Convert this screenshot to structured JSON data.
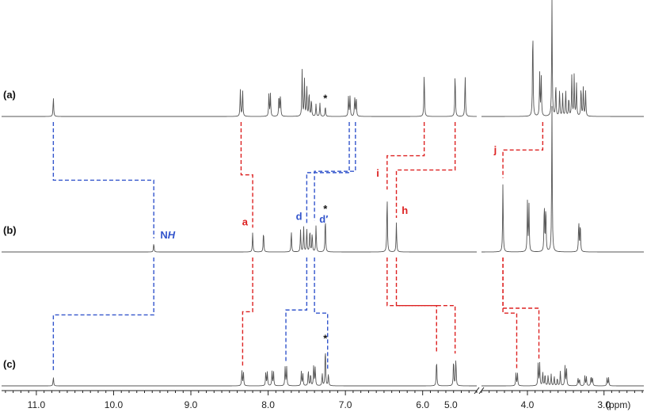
{
  "chart_data": {
    "type": "line",
    "title": "",
    "xlabel": "",
    "ylabel": "",
    "x_unit_label": "(ppm)",
    "xlim": [
      11.45,
      2.48
    ],
    "axis_break": [
      4.6,
      5.3
    ],
    "x_ticks": [
      {
        "value": 11.0,
        "label": "11.0"
      },
      {
        "value": 10.0,
        "label": "10.0"
      },
      {
        "value": 9.0,
        "label": "9.0"
      },
      {
        "value": 8.0,
        "label": "8.0"
      },
      {
        "value": 7.0,
        "label": "7.0"
      },
      {
        "value": 6.0,
        "label": "6.0"
      },
      {
        "value": 5.0,
        "label": "5.0"
      },
      {
        "value": 4.0,
        "label": "4.0"
      },
      {
        "value": 3.0,
        "label": "3.0"
      }
    ],
    "colors": {
      "trace": "#555555",
      "aromatic_connector": "#3355cc",
      "aliphatic_connector": "#dd2222",
      "text": "#111111"
    },
    "series": [
      {
        "name": "(a)",
        "solvent_marker": {
          "ppm": 7.26,
          "label": "*"
        },
        "peaks": [
          {
            "ppm": 10.78,
            "h": 0.22
          },
          {
            "ppm": 8.36,
            "h": 0.3
          },
          {
            "ppm": 8.33,
            "h": 0.3
          },
          {
            "ppm": 7.99,
            "h": 0.25
          },
          {
            "ppm": 7.97,
            "h": 0.25
          },
          {
            "ppm": 7.86,
            "h": 0.25
          },
          {
            "ppm": 7.84,
            "h": 0.25
          },
          {
            "ppm": 7.56,
            "h": 0.52
          },
          {
            "ppm": 7.53,
            "h": 0.42
          },
          {
            "ppm": 7.5,
            "h": 0.35
          },
          {
            "ppm": 7.47,
            "h": 0.28
          },
          {
            "ppm": 7.44,
            "h": 0.2
          },
          {
            "ppm": 7.38,
            "h": 0.14
          },
          {
            "ppm": 7.33,
            "h": 0.15
          },
          {
            "ppm": 7.26,
            "h": 0.12
          },
          {
            "ppm": 6.96,
            "h": 0.22
          },
          {
            "ppm": 6.94,
            "h": 0.22
          },
          {
            "ppm": 6.88,
            "h": 0.22
          },
          {
            "ppm": 6.86,
            "h": 0.22
          },
          {
            "ppm": 5.98,
            "h": 0.5
          },
          {
            "ppm": 5.58,
            "h": 0.5
          },
          {
            "ppm": 5.45,
            "h": 0.48
          },
          {
            "ppm": 3.93,
            "h": 1.05
          },
          {
            "ppm": 3.84,
            "h": 0.48
          },
          {
            "ppm": 3.82,
            "h": 0.45
          },
          {
            "ppm": 3.68,
            "h": 1.32
          },
          {
            "ppm": 3.63,
            "h": 0.38
          },
          {
            "ppm": 3.58,
            "h": 0.3
          },
          {
            "ppm": 3.54,
            "h": 0.25
          },
          {
            "ppm": 3.5,
            "h": 0.3
          },
          {
            "ppm": 3.46,
            "h": 0.22
          },
          {
            "ppm": 3.42,
            "h": 0.48
          },
          {
            "ppm": 3.39,
            "h": 0.46
          },
          {
            "ppm": 3.36,
            "h": 0.38
          },
          {
            "ppm": 3.3,
            "h": 0.34
          },
          {
            "ppm": 3.27,
            "h": 0.34
          },
          {
            "ppm": 3.24,
            "h": 0.28
          }
        ]
      },
      {
        "name": "(b)",
        "solvent_marker": {
          "ppm": 7.26,
          "label": "*"
        },
        "peaks": [
          {
            "ppm": 9.48,
            "h": 0.1
          },
          {
            "ppm": 8.2,
            "h": 0.22
          },
          {
            "ppm": 8.06,
            "h": 0.24
          },
          {
            "ppm": 7.7,
            "h": 0.24
          },
          {
            "ppm": 7.58,
            "h": 0.25
          },
          {
            "ppm": 7.54,
            "h": 0.28
          },
          {
            "ppm": 7.5,
            "h": 0.27
          },
          {
            "ppm": 7.46,
            "h": 0.26
          },
          {
            "ppm": 7.43,
            "h": 0.22
          },
          {
            "ppm": 7.38,
            "h": 0.3
          },
          {
            "ppm": 7.26,
            "h": 0.4
          },
          {
            "ppm": 6.46,
            "h": 0.65
          },
          {
            "ppm": 6.34,
            "h": 0.33
          },
          {
            "ppm": 4.32,
            "h": 0.78
          },
          {
            "ppm": 4.0,
            "h": 0.56
          },
          {
            "ppm": 3.98,
            "h": 0.53
          },
          {
            "ppm": 3.78,
            "h": 0.56
          },
          {
            "ppm": 3.76,
            "h": 0.53
          },
          {
            "ppm": 3.68,
            "h": 1.65
          },
          {
            "ppm": 3.33,
            "h": 0.36
          },
          {
            "ppm": 3.31,
            "h": 0.33
          }
        ]
      },
      {
        "name": "(c)",
        "solvent_marker": {
          "ppm": 7.26,
          "label": "*"
        },
        "peaks": [
          {
            "ppm": 10.78,
            "h": 0.1
          },
          {
            "ppm": 8.34,
            "h": 0.17
          },
          {
            "ppm": 8.32,
            "h": 0.16
          },
          {
            "ppm": 8.03,
            "h": 0.16
          },
          {
            "ppm": 8.01,
            "h": 0.16
          },
          {
            "ppm": 7.95,
            "h": 0.16
          },
          {
            "ppm": 7.93,
            "h": 0.16
          },
          {
            "ppm": 7.78,
            "h": 0.21
          },
          {
            "ppm": 7.76,
            "h": 0.21
          },
          {
            "ppm": 7.57,
            "h": 0.16
          },
          {
            "ppm": 7.55,
            "h": 0.13
          },
          {
            "ppm": 7.48,
            "h": 0.18
          },
          {
            "ppm": 7.45,
            "h": 0.14
          },
          {
            "ppm": 7.41,
            "h": 0.24
          },
          {
            "ppm": 7.39,
            "h": 0.21
          },
          {
            "ppm": 7.3,
            "h": 0.14
          },
          {
            "ppm": 7.26,
            "h": 0.45
          },
          {
            "ppm": 7.22,
            "h": 0.14
          },
          {
            "ppm": 5.82,
            "h": 0.31
          },
          {
            "ppm": 5.6,
            "h": 0.31
          },
          {
            "ppm": 5.57,
            "h": 0.31
          },
          {
            "ppm": 4.15,
            "h": 0.14
          },
          {
            "ppm": 4.13,
            "h": 0.14
          },
          {
            "ppm": 3.86,
            "h": 0.25
          },
          {
            "ppm": 3.84,
            "h": 0.25
          },
          {
            "ppm": 3.8,
            "h": 0.16
          },
          {
            "ppm": 3.77,
            "h": 0.14
          },
          {
            "ppm": 3.73,
            "h": 0.12
          },
          {
            "ppm": 3.69,
            "h": 0.13
          },
          {
            "ppm": 3.65,
            "h": 0.11
          },
          {
            "ppm": 3.61,
            "h": 0.09
          },
          {
            "ppm": 3.57,
            "h": 0.17
          },
          {
            "ppm": 3.51,
            "h": 0.23
          },
          {
            "ppm": 3.49,
            "h": 0.21
          },
          {
            "ppm": 3.34,
            "h": 0.09
          },
          {
            "ppm": 3.32,
            "h": 0.08
          },
          {
            "ppm": 3.25,
            "h": 0.11
          },
          {
            "ppm": 3.23,
            "h": 0.1
          },
          {
            "ppm": 3.17,
            "h": 0.11
          },
          {
            "ppm": 3.15,
            "h": 0.1
          },
          {
            "ppm": 2.96,
            "h": 0.09
          },
          {
            "ppm": 2.94,
            "h": 0.09
          }
        ]
      }
    ],
    "peak_labels": [
      {
        "label": "NH",
        "base": "N",
        "italic": "H",
        "ppm": 9.3,
        "series": 1,
        "lift": 0.15,
        "color": "#3355cc"
      },
      {
        "label": "a",
        "ppm": 8.3,
        "series": 1,
        "lift": 0.3,
        "color": "#dd2222"
      },
      {
        "label": "d",
        "ppm": 7.6,
        "series": 1,
        "lift": 0.36,
        "color": "#3355cc"
      },
      {
        "label": "d′",
        "ppm": 7.28,
        "series": 1,
        "lift": 0.33,
        "color": "#3355cc"
      },
      {
        "label": "i",
        "ppm": 6.58,
        "series": 1,
        "lift": 0.85,
        "color": "#dd2222"
      },
      {
        "label": "h",
        "ppm": 6.23,
        "series": 1,
        "lift": 0.43,
        "color": "#dd2222"
      },
      {
        "label": "j",
        "ppm": 4.42,
        "series": 1,
        "lift": 1.11,
        "color": "#dd2222"
      }
    ],
    "connectors": [
      {
        "color": "blue",
        "from": {
          "series": 0,
          "ppm": 10.78
        },
        "mid_ppm": 9.48,
        "to": {
          "series": 1,
          "ppm": 9.48
        }
      },
      {
        "color": "blue",
        "from": {
          "series": 1,
          "ppm": 9.48
        },
        "mid_ppm": 10.78,
        "to": {
          "series": 2,
          "ppm": 10.78
        }
      },
      {
        "color": "red",
        "from": {
          "series": 0,
          "ppm": 8.35
        },
        "mid_ppm": 8.2,
        "to": {
          "series": 1,
          "ppm": 8.2
        }
      },
      {
        "color": "red",
        "from": {
          "series": 1,
          "ppm": 8.2
        },
        "mid_ppm": 8.33,
        "to": {
          "series": 2,
          "ppm": 8.33
        }
      },
      {
        "color": "blue",
        "from": {
          "series": 0,
          "ppm": 6.95
        },
        "mid_ppm": 7.5,
        "to": {
          "series": 1,
          "ppm": 7.5
        }
      },
      {
        "color": "blue",
        "from": {
          "series": 0,
          "ppm": 6.87
        },
        "mid_ppm": 7.4,
        "to": {
          "series": 1,
          "ppm": 7.4
        }
      },
      {
        "color": "blue",
        "from": {
          "series": 1,
          "ppm": 7.5
        },
        "mid_ppm": 7.77,
        "to": {
          "series": 2,
          "ppm": 7.77
        }
      },
      {
        "color": "blue",
        "from": {
          "series": 1,
          "ppm": 7.4
        },
        "mid_ppm": 7.23,
        "to": {
          "series": 2,
          "ppm": 7.23
        }
      },
      {
        "color": "red",
        "from": {
          "series": 0,
          "ppm": 5.98
        },
        "mid_ppm": 6.46,
        "to": {
          "series": 1,
          "ppm": 6.46
        }
      },
      {
        "color": "red",
        "from": {
          "series": 0,
          "ppm": 5.58
        },
        "mid_ppm": 6.34,
        "to": {
          "series": 1,
          "ppm": 6.34
        }
      },
      {
        "color": "red",
        "from": {
          "series": 1,
          "ppm": 6.46
        },
        "mid_ppm": 5.82,
        "to": {
          "series": 2,
          "ppm": 5.82
        }
      },
      {
        "color": "red",
        "from": {
          "series": 1,
          "ppm": 6.34
        },
        "mid_ppm": 5.58,
        "to": {
          "series": 2,
          "ppm": 5.58
        }
      },
      {
        "color": "red",
        "from": {
          "series": 0,
          "ppm": 3.8
        },
        "mid_ppm": 4.32,
        "to": {
          "series": 1,
          "ppm": 4.32
        }
      },
      {
        "color": "red",
        "from": {
          "series": 1,
          "ppm": 4.32
        },
        "mid_ppm": 4.14,
        "to": {
          "series": 2,
          "ppm": 4.14
        }
      },
      {
        "color": "red",
        "from": {
          "series": 1,
          "ppm": 4.32
        },
        "mid_ppm": 3.85,
        "to": {
          "series": 2,
          "ppm": 3.85
        }
      }
    ]
  }
}
